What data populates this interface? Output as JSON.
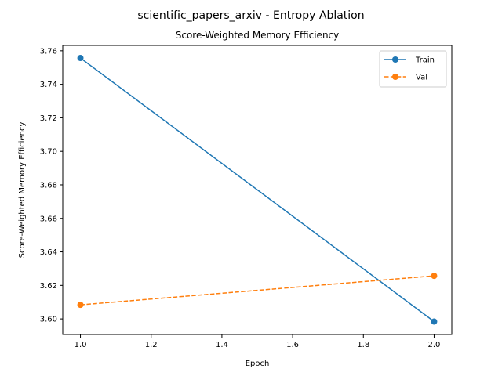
{
  "figure": {
    "suptitle": "scientific_papers_arxiv - Entropy Ablation"
  },
  "chart_data": {
    "type": "line",
    "title": "Score-Weighted Memory Efficiency",
    "xlabel": "Epoch",
    "ylabel": "Score-Weighted Memory Efficiency",
    "x": [
      1.0,
      2.0
    ],
    "xlim": [
      0.95,
      2.05
    ],
    "ylim": [
      3.5907,
      3.7632
    ],
    "xticks": [
      "1.0",
      "1.2",
      "1.4",
      "1.6",
      "1.8",
      "2.0"
    ],
    "yticks": [
      "3.60",
      "3.62",
      "3.64",
      "3.66",
      "3.68",
      "3.70",
      "3.72",
      "3.74",
      "3.76"
    ],
    "grid": false,
    "legend_position": "top-right",
    "series": [
      {
        "name": "Train",
        "values": [
          3.7557,
          3.5984
        ],
        "color": "#1f77b4",
        "linestyle": "solid",
        "marker": "circle"
      },
      {
        "name": "Val",
        "values": [
          3.6084,
          3.6257
        ],
        "color": "#ff7f0e",
        "linestyle": "dashed",
        "marker": "circle"
      }
    ]
  }
}
